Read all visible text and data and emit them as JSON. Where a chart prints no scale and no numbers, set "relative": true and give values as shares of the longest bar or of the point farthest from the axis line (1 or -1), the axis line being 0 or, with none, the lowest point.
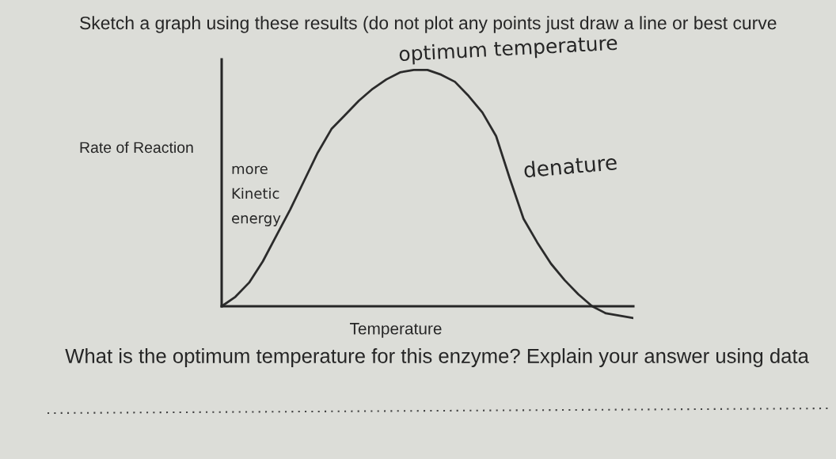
{
  "chart_data": {
    "type": "line",
    "title": "Sketch a graph using these results (do not plot any points just draw a line or best curve",
    "xlabel": "Temperature",
    "ylabel": "Rate of Reaction",
    "relative": true,
    "line_style": "solid",
    "categories": [
      null,
      null,
      null,
      null,
      null,
      null,
      null,
      null,
      null,
      null,
      null,
      null,
      null,
      null,
      null,
      null,
      null,
      null,
      null,
      null,
      null,
      null,
      null,
      null,
      null,
      null,
      null,
      null,
      null,
      null,
      null
    ],
    "series": [
      {
        "color": "#2b2b2b",
        "values": [
          0,
          0.04,
          0.1,
          0.19,
          0.3,
          0.41,
          0.53,
          0.65,
          0.75,
          0.81,
          0.87,
          0.92,
          0.96,
          0.99,
          1.0,
          1.0,
          0.98,
          0.95,
          0.89,
          0.82,
          0.72,
          0.54,
          0.37,
          0.27,
          0.18,
          0.11,
          0.05,
          0.0,
          -0.03,
          -0.04,
          -0.05
        ]
      }
    ],
    "annotations": [
      "optimum temperature",
      "more\nKinetic\nenergy",
      "denature",
      "What is the optimum temperature for this enzyme? Explain your answer using data"
    ]
  }
}
